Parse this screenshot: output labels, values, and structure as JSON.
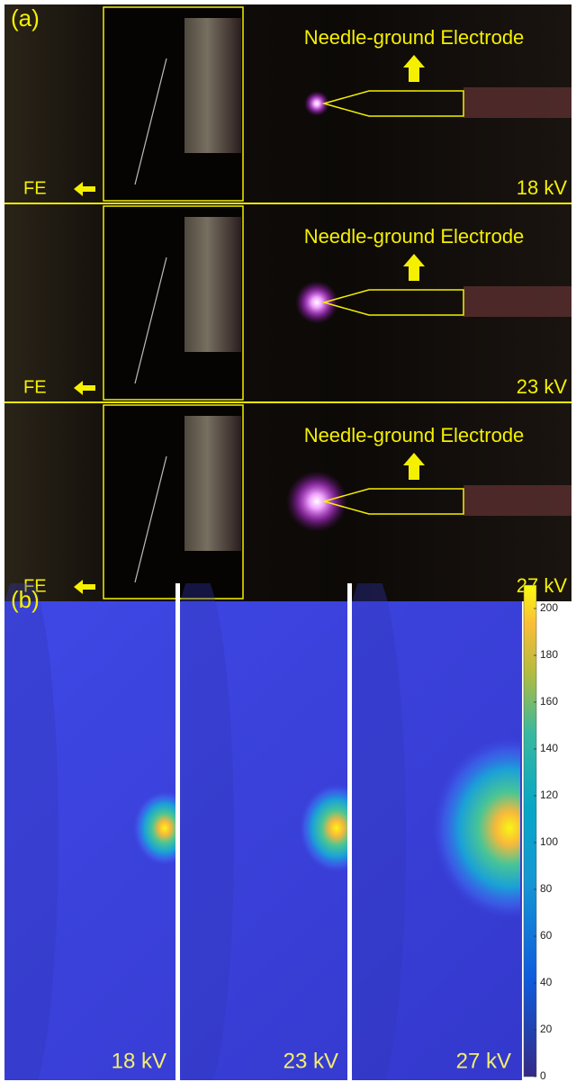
{
  "panel_a": {
    "label": "(a)",
    "rows": [
      {
        "electrode_label": "Needle-ground Electrode",
        "fe_label": "FE",
        "voltage": "18 kV"
      },
      {
        "electrode_label": "Needle-ground Electrode",
        "fe_label": "FE",
        "voltage": "23 kV"
      },
      {
        "electrode_label": "Needle-ground Electrode",
        "fe_label": "FE",
        "voltage": "27 kV"
      }
    ]
  },
  "panel_b": {
    "label": "(b)",
    "panels": [
      "18 kV",
      "23 kV",
      "27 kV"
    ],
    "colorbar": {
      "lim": [
        0,
        210
      ],
      "ticks": [
        0,
        20,
        40,
        60,
        80,
        100,
        120,
        140,
        160,
        180,
        200
      ]
    }
  }
}
